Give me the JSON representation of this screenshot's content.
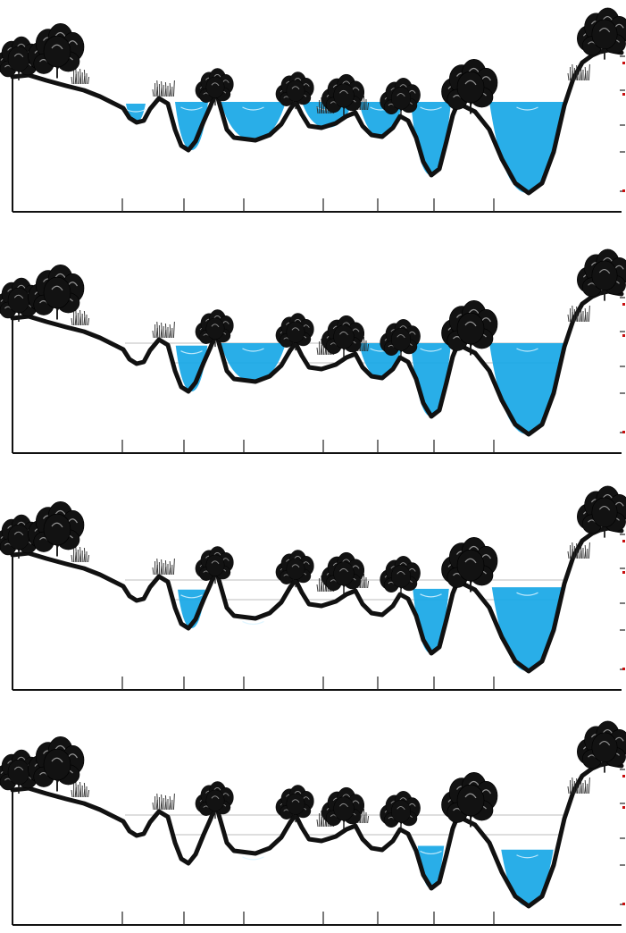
{
  "figure": {
    "panels": [
      {
        "name": "panel-1",
        "pool_fill": [
          1,
          1,
          1,
          1,
          1,
          1,
          1
        ]
      },
      {
        "name": "panel-2",
        "pool_fill": [
          0,
          0.95,
          1,
          0,
          1,
          1,
          1
        ]
      },
      {
        "name": "panel-3",
        "pool_fill": [
          0,
          0.8,
          0.06,
          0,
          0,
          0.88,
          0.92
        ]
      },
      {
        "name": "panel-4",
        "pool_fill": [
          0,
          0,
          0.05,
          0,
          0,
          0.58,
          0.62
        ]
      }
    ],
    "colors": {
      "water": "#17a7e6",
      "terrain": "#111111",
      "tree": "#121212",
      "marker": "#c81010",
      "guide": "#c9c9c9"
    },
    "icons": {
      "tree": "tree-icon",
      "shrub": "shrub-icon"
    }
  }
}
